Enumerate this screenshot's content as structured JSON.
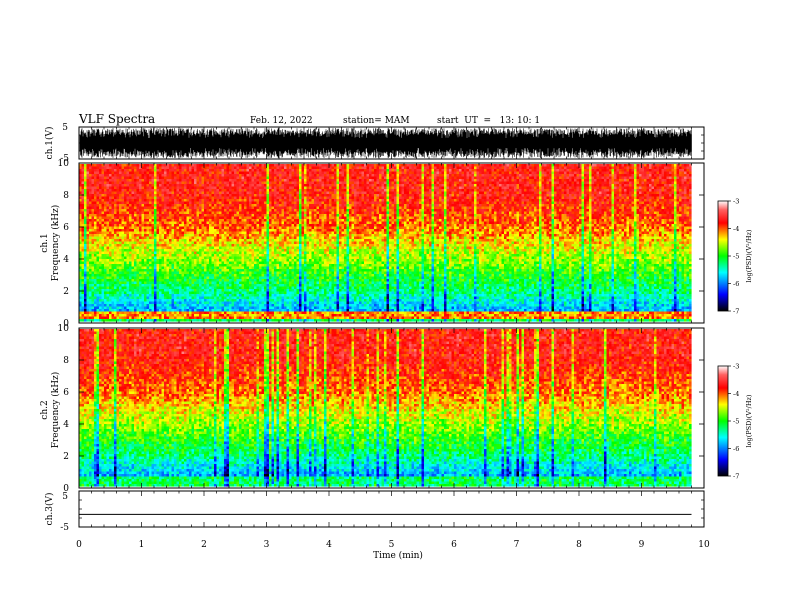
{
  "header": {
    "title": "VLF Spectra",
    "date": "Feb. 12, 2022",
    "station": "station= MAM",
    "start": "start  UT  =   13: 10: 1"
  },
  "chart_data": [
    {
      "type": "line",
      "panel": "ch1-waveform",
      "ylabel": "ch.1(V)",
      "ylim": [
        -5,
        5
      ],
      "yticks": [
        "5",
        "-5"
      ],
      "xlim": [
        0,
        10
      ],
      "description_values": "dense waveform saturating near +/-5 V"
    },
    {
      "type": "heatmap",
      "panel": "ch1-spectrogram",
      "ylabel_line1": "ch.1",
      "ylabel_line2": "Frequency (kHz)",
      "ylim": [
        0,
        10
      ],
      "yticks": [
        "0",
        "2",
        "4",
        "6",
        "8",
        "10"
      ],
      "xlim": [
        0,
        9.8
      ],
      "colorbar": {
        "label": "log(PSD)(V²/Hz)",
        "range": [
          -7,
          -3
        ],
        "ticks": [
          "-3",
          "-4",
          "-5",
          "-6",
          "-7"
        ]
      }
    },
    {
      "type": "heatmap",
      "panel": "ch2-spectrogram",
      "ylabel_line1": "ch.2",
      "ylabel_line2": "Frequency (kHz)",
      "ylim": [
        0,
        10
      ],
      "yticks": [
        "0",
        "2",
        "4",
        "6",
        "8",
        "10"
      ],
      "xlim": [
        0,
        9.8
      ],
      "colorbar": {
        "label": "log(PSD)(V²/Hz)",
        "range": [
          -7,
          -3
        ],
        "ticks": [
          "-3",
          "-4",
          "-5",
          "-6",
          "-7"
        ]
      }
    },
    {
      "type": "line",
      "panel": "ch3-waveform",
      "ylabel": "ch.3(V)",
      "ylim": [
        -5,
        5
      ],
      "yticks": [
        "5",
        "-5"
      ],
      "xlim": [
        0,
        10
      ],
      "values_flat": -1.5
    }
  ],
  "xaxis": {
    "label": "Time (min)",
    "ticks": [
      "0",
      "1",
      "2",
      "3",
      "4",
      "5",
      "6",
      "7",
      "8",
      "9",
      "10"
    ],
    "range": [
      0,
      10
    ]
  },
  "colors": {
    "ink": "#000000",
    "cmap": [
      "#000000",
      "#0000ff",
      "#00ffff",
      "#00ff00",
      "#ffff00",
      "#ff0000",
      "#ff2020",
      "#ffffff"
    ]
  }
}
